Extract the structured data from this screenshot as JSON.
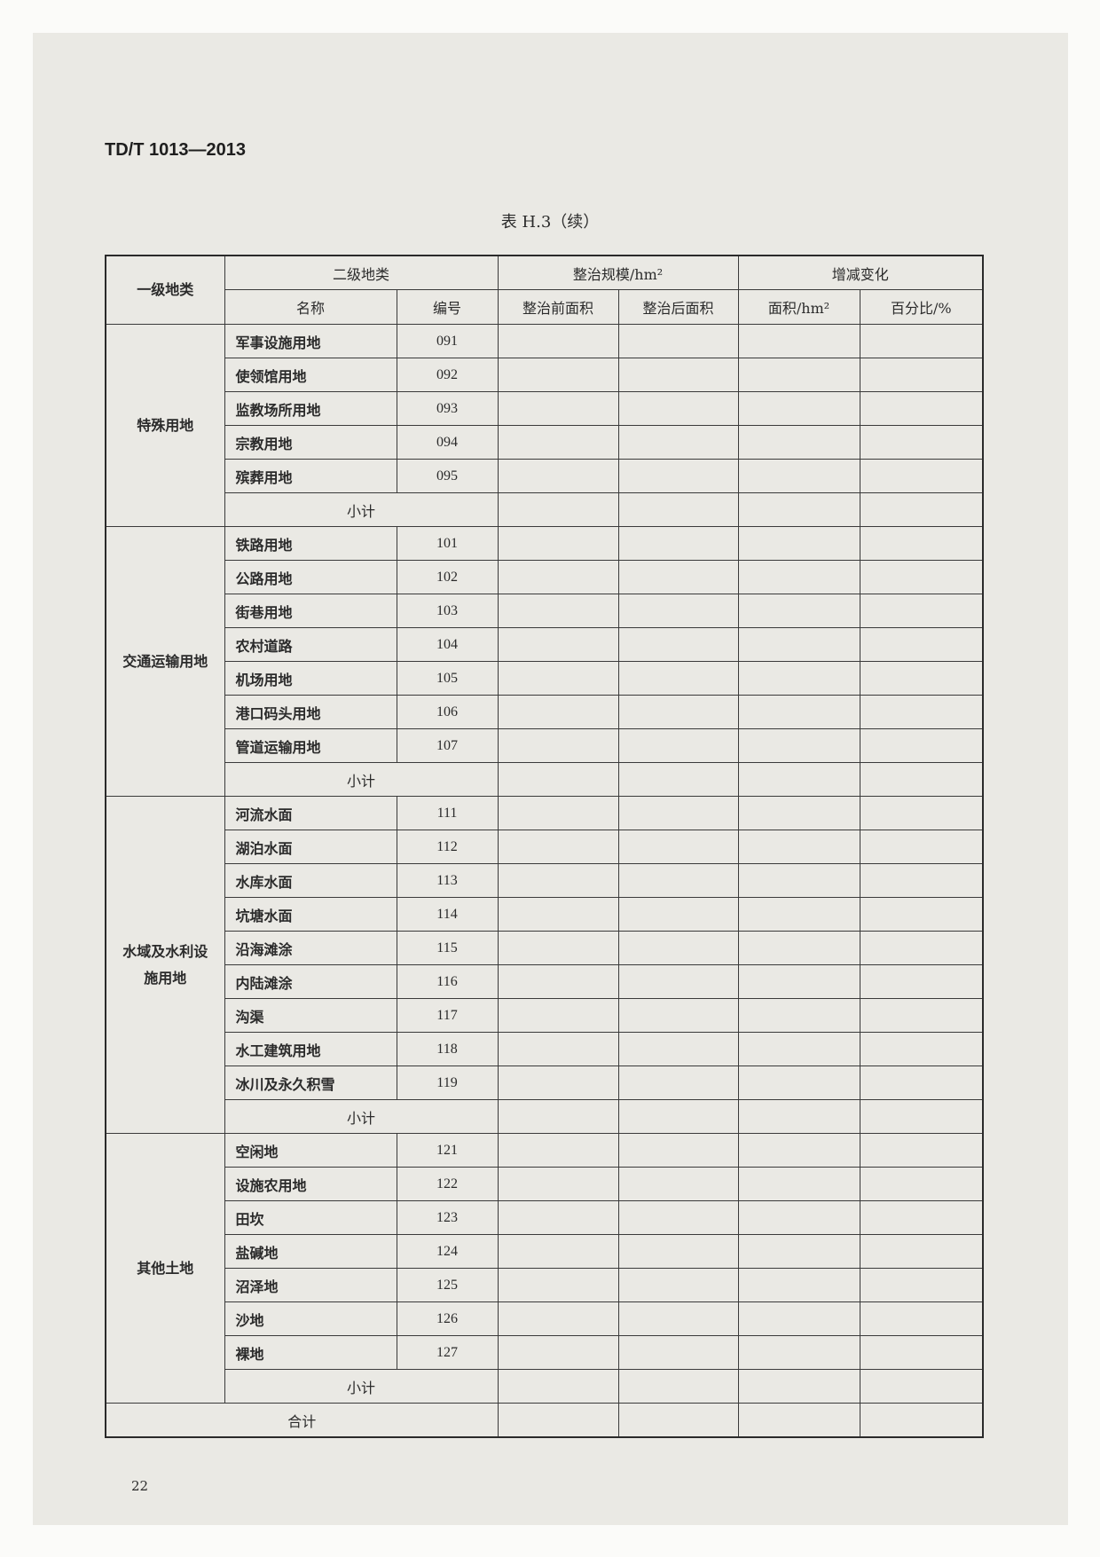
{
  "header": {
    "standard": "TD/T 1013—2013",
    "table_title": "表 H.3（续）"
  },
  "columns": {
    "level1": "一级地类",
    "level2": "二级地类",
    "name": "名称",
    "code": "编号",
    "scale": "整治规模/hm²",
    "before": "整治前面积",
    "after": "整治后面积",
    "change": "增减变化",
    "area": "面积/hm²",
    "percent": "百分比/%"
  },
  "categories": [
    {
      "label": "特殊用地",
      "items": [
        {
          "name": "军事设施用地",
          "code": "091"
        },
        {
          "name": "使领馆用地",
          "code": "092"
        },
        {
          "name": "监教场所用地",
          "code": "093"
        },
        {
          "name": "宗教用地",
          "code": "094"
        },
        {
          "name": "殡葬用地",
          "code": "095"
        }
      ]
    },
    {
      "label": "交通运输用地",
      "items": [
        {
          "name": "铁路用地",
          "code": "101"
        },
        {
          "name": "公路用地",
          "code": "102"
        },
        {
          "name": "街巷用地",
          "code": "103"
        },
        {
          "name": "农村道路",
          "code": "104"
        },
        {
          "name": "机场用地",
          "code": "105"
        },
        {
          "name": "港口码头用地",
          "code": "106"
        },
        {
          "name": "管道运输用地",
          "code": "107"
        }
      ]
    },
    {
      "label": "水域及水利设施用地",
      "items": [
        {
          "name": "河流水面",
          "code": "111"
        },
        {
          "name": "湖泊水面",
          "code": "112"
        },
        {
          "name": "水库水面",
          "code": "113"
        },
        {
          "name": "坑塘水面",
          "code": "114"
        },
        {
          "name": "沿海滩涂",
          "code": "115"
        },
        {
          "name": "内陆滩涂",
          "code": "116"
        },
        {
          "name": "沟渠",
          "code": "117"
        },
        {
          "name": "水工建筑用地",
          "code": "118"
        },
        {
          "name": "冰川及永久积雪",
          "code": "119"
        }
      ]
    },
    {
      "label": "其他土地",
      "items": [
        {
          "name": "空闲地",
          "code": "121"
        },
        {
          "name": "设施农用地",
          "code": "122"
        },
        {
          "name": "田坎",
          "code": "123"
        },
        {
          "name": "盐碱地",
          "code": "124"
        },
        {
          "name": "沼泽地",
          "code": "125"
        },
        {
          "name": "沙地",
          "code": "126"
        },
        {
          "name": "裸地",
          "code": "127"
        }
      ]
    }
  ],
  "subtotal_label": "小计",
  "total_label": "合计",
  "footer": {
    "page_number": "22"
  }
}
